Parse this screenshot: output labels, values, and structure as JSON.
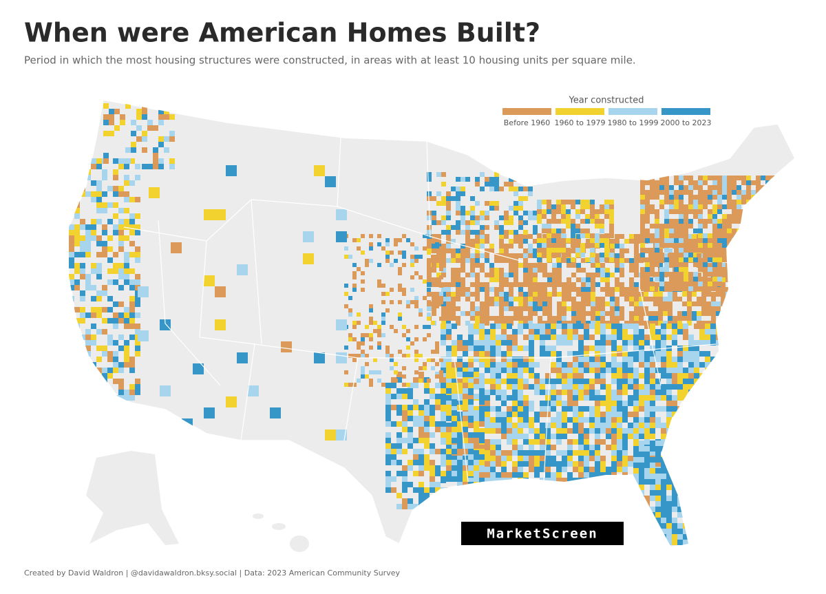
{
  "header": {
    "title": "When were American Homes Built?",
    "subtitle": "Period in which the most housing structures were constructed, in areas with at least 10 housing units per square mile."
  },
  "legend": {
    "title": "Year constructed",
    "items": [
      {
        "label": "Before 1960",
        "color": "#dc9a5a"
      },
      {
        "label": "1960 to 1979",
        "color": "#f2d22e"
      },
      {
        "label": "1980 to 1999",
        "color": "#a8d5ee"
      },
      {
        "label": "2000 to 2023",
        "color": "#3596c7"
      }
    ]
  },
  "logo": {
    "text": "MarketScreen"
  },
  "footer": {
    "credit": "Created by David Waldron | @davidawaldron.bksy.social | Data: 2023 American Community Survey"
  }
}
